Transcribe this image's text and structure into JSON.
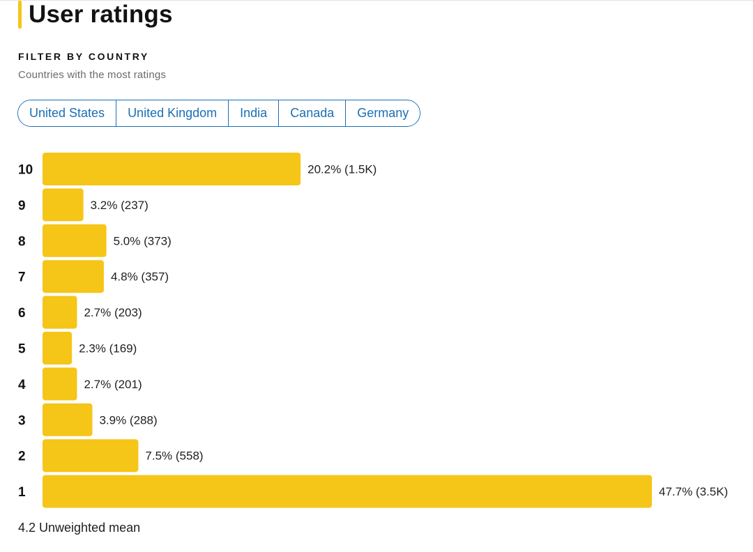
{
  "header": {
    "title": "User ratings"
  },
  "filter": {
    "label": "FILTER BY COUNTRY",
    "subtitle": "Countries with the most ratings",
    "countries": [
      "United States",
      "United Kingdom",
      "India",
      "Canada",
      "Germany"
    ]
  },
  "colors": {
    "accent": "#f5c518",
    "link": "#1a6fb5",
    "bar": "#f5c518"
  },
  "chart_data": {
    "type": "bar",
    "orientation": "horizontal",
    "categories": [
      "10",
      "9",
      "8",
      "7",
      "6",
      "5",
      "4",
      "3",
      "2",
      "1"
    ],
    "values": [
      20.2,
      3.2,
      5.0,
      4.8,
      2.7,
      2.3,
      2.7,
      3.9,
      7.5,
      47.7
    ],
    "labels": [
      "20.2% (1.5K)",
      "3.2% (237)",
      "5.0% (373)",
      "4.8% (357)",
      "2.7% (203)",
      "2.3% (169)",
      "2.7% (201)",
      "3.9% (288)",
      "7.5% (558)",
      "47.7% (3.5K)"
    ],
    "xlim": [
      0,
      47.7
    ]
  },
  "summary": {
    "mean": "4.2 Unweighted mean"
  }
}
